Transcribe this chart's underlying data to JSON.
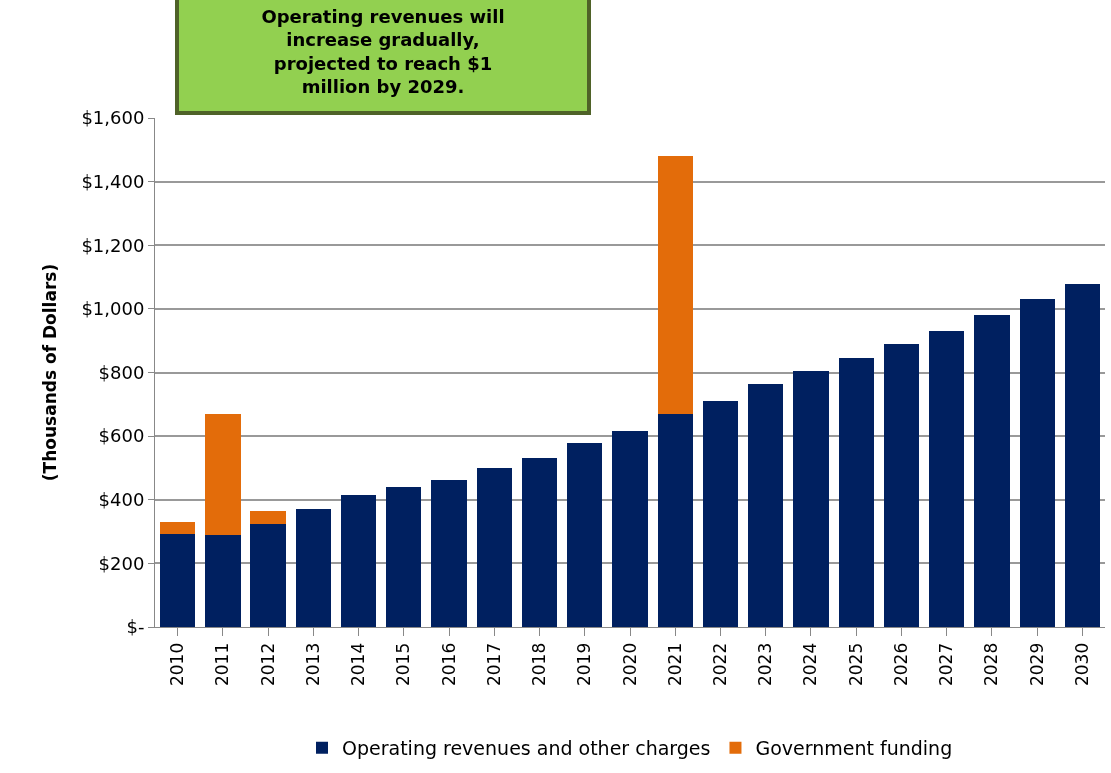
{
  "chart_data": {
    "type": "bar",
    "stacked": true,
    "ylabel": "(Thousands of Dollars)",
    "annotations": [
      "Operating revenues will increase gradually, projected to reach $1 million by 2029."
    ],
    "categories": [
      "2010",
      "2011",
      "2012",
      "2013",
      "2014",
      "2015",
      "2016",
      "2017",
      "2018",
      "2019",
      "2020",
      "2021",
      "2022",
      "2023",
      "2024",
      "2025",
      "2026",
      "2027",
      "2028",
      "2029",
      "2030"
    ],
    "series": [
      {
        "name": "Operating revenues and other charges",
        "color": "#002060",
        "values": [
          293,
          290,
          325,
          371,
          414,
          439,
          463,
          501,
          532,
          579,
          616,
          668,
          711,
          763,
          805,
          847,
          889,
          932,
          980,
          1030,
          1079
        ]
      },
      {
        "name": "Government funding",
        "color": "#e36c0a",
        "values": [
          38,
          378,
          39,
          null,
          null,
          null,
          null,
          null,
          null,
          null,
          null,
          814,
          null,
          null,
          null,
          null,
          null,
          null,
          null,
          null,
          null
        ]
      }
    ],
    "ylim": [
      0,
      1600
    ],
    "yticks": [
      {
        "value": 0,
        "label": "$-"
      },
      {
        "value": 200,
        "label": "$200"
      },
      {
        "value": 400,
        "label": "$400"
      },
      {
        "value": 600,
        "label": "$600"
      },
      {
        "value": 800,
        "label": "$800"
      },
      {
        "value": 1000,
        "label": "$1,000"
      },
      {
        "value": 1200,
        "label": "$1,200"
      },
      {
        "value": 1400,
        "label": "$1,400"
      },
      {
        "value": 1600,
        "label": "$1,600"
      }
    ],
    "grid": "y",
    "legend": "bottom"
  }
}
